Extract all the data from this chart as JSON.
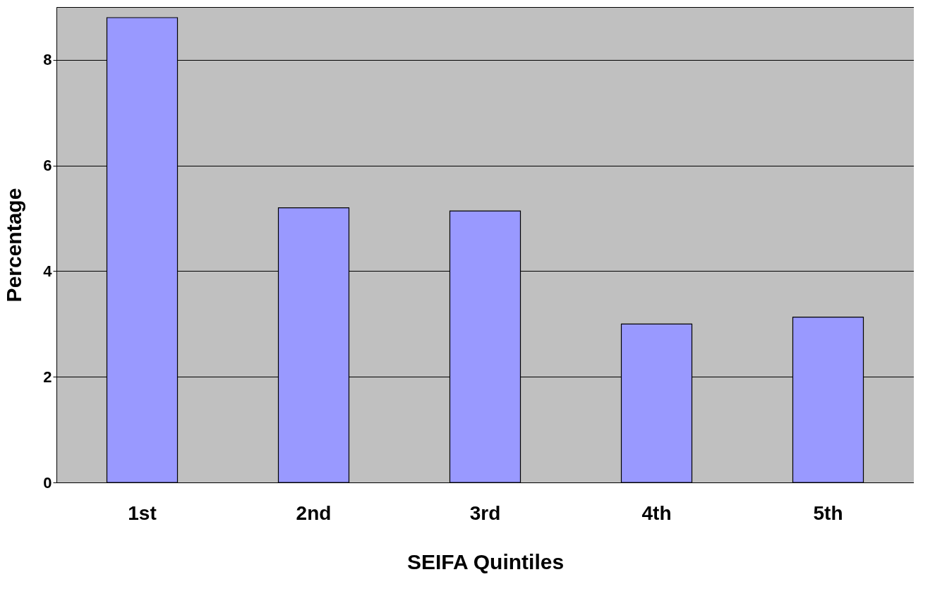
{
  "chart_data": {
    "type": "bar",
    "xlabel": "SEIFA Quintiles",
    "ylabel": "Percentage",
    "categories": [
      "1st",
      "2nd",
      "3rd",
      "4th",
      "5th"
    ],
    "values": [
      8.8,
      5.2,
      5.14,
      3.0,
      3.13
    ],
    "color": "#9999ff",
    "ylim": [
      0,
      9
    ],
    "yticks": [
      0,
      2,
      4,
      6,
      8
    ],
    "grid": "y"
  }
}
